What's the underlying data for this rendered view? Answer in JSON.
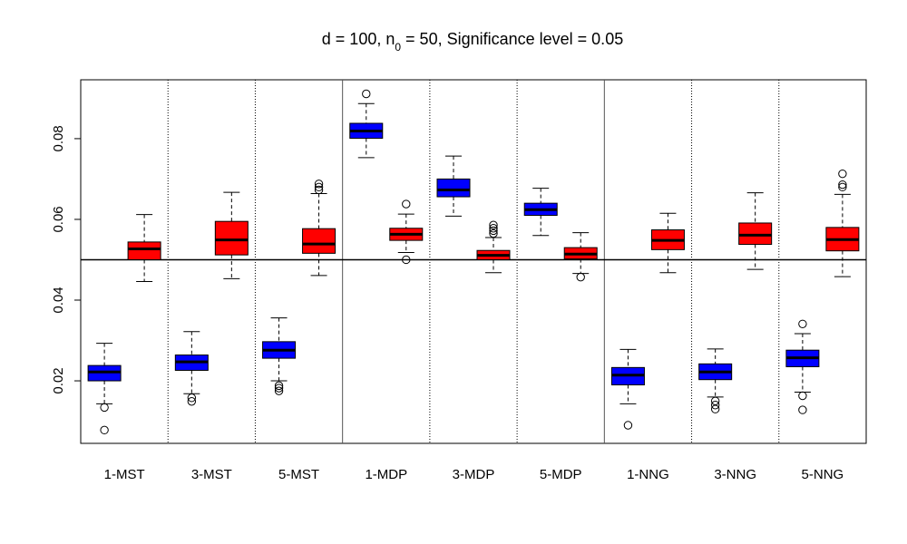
{
  "chart_data": {
    "type": "boxplot",
    "title": {
      "prefix": "d = 100, n",
      "subscript": "0",
      "suffix": " = 50, Significance level = 0.05"
    },
    "xlabel": "",
    "ylabel": "",
    "ylim": [
      0.005,
      0.095
    ],
    "y_ticks": [
      0.02,
      0.04,
      0.06,
      0.08
    ],
    "y_tick_labels": [
      "0.02",
      "0.04",
      "0.06",
      "0.08"
    ],
    "reference_line": 0.05,
    "colors": {
      "series_a": "#0000ff",
      "series_b": "#ff0000"
    },
    "groups": [
      {
        "label": "1-MST",
        "boxes": [
          {
            "series": "a",
            "whisker_low": 0.0143,
            "q1": 0.02,
            "median": 0.0222,
            "q3": 0.0238,
            "whisker_high": 0.0293,
            "outliers": [
              0.0134,
              0.0078
            ]
          },
          {
            "series": "b",
            "whisker_low": 0.0446,
            "q1": 0.05,
            "median": 0.0527,
            "q3": 0.0544,
            "whisker_high": 0.0612,
            "outliers": []
          }
        ]
      },
      {
        "label": "3-MST",
        "boxes": [
          {
            "series": "a",
            "whisker_low": 0.0168,
            "q1": 0.0226,
            "median": 0.0247,
            "q3": 0.0264,
            "whisker_high": 0.0322,
            "outliers": [
              0.0158,
              0.0149
            ]
          },
          {
            "series": "b",
            "whisker_low": 0.0453,
            "q1": 0.0512,
            "median": 0.0549,
            "q3": 0.0595,
            "whisker_high": 0.0667,
            "outliers": []
          }
        ]
      },
      {
        "label": "5-MST",
        "boxes": [
          {
            "series": "a",
            "whisker_low": 0.02,
            "q1": 0.0256,
            "median": 0.0276,
            "q3": 0.0297,
            "whisker_high": 0.0356,
            "outliers": [
              0.0188,
              0.0182,
              0.0175
            ]
          },
          {
            "series": "b",
            "whisker_low": 0.0461,
            "q1": 0.0516,
            "median": 0.0539,
            "q3": 0.0577,
            "whisker_high": 0.0664,
            "outliers": [
              0.0673,
              0.068,
              0.0688
            ]
          }
        ]
      },
      {
        "label": "1-MDP",
        "boxes": [
          {
            "series": "a",
            "whisker_low": 0.0753,
            "q1": 0.0801,
            "median": 0.0819,
            "q3": 0.0838,
            "whisker_high": 0.0887,
            "outliers": [
              0.0911
            ]
          },
          {
            "series": "b",
            "whisker_low": 0.0518,
            "q1": 0.0548,
            "median": 0.0563,
            "q3": 0.0578,
            "whisker_high": 0.0613,
            "outliers": [
              0.0638,
              0.05
            ]
          }
        ]
      },
      {
        "label": "3-MDP",
        "boxes": [
          {
            "series": "a",
            "whisker_low": 0.0608,
            "q1": 0.0656,
            "median": 0.0673,
            "q3": 0.07,
            "whisker_high": 0.0757,
            "outliers": []
          },
          {
            "series": "b",
            "whisker_low": 0.0468,
            "q1": 0.05,
            "median": 0.0511,
            "q3": 0.0523,
            "whisker_high": 0.0555,
            "outliers": [
              0.0565,
              0.0572,
              0.0578,
              0.0586
            ]
          }
        ]
      },
      {
        "label": "5-MDP",
        "boxes": [
          {
            "series": "a",
            "whisker_low": 0.056,
            "q1": 0.061,
            "median": 0.0624,
            "q3": 0.064,
            "whisker_high": 0.0677,
            "outliers": []
          },
          {
            "series": "b",
            "whisker_low": 0.0466,
            "q1": 0.0502,
            "median": 0.0514,
            "q3": 0.053,
            "whisker_high": 0.0567,
            "outliers": [
              0.0457
            ]
          }
        ]
      },
      {
        "label": "1-NNG",
        "boxes": [
          {
            "series": "a",
            "whisker_low": 0.0143,
            "q1": 0.019,
            "median": 0.0214,
            "q3": 0.0233,
            "whisker_high": 0.0278,
            "outliers": [
              0.009
            ]
          },
          {
            "series": "b",
            "whisker_low": 0.0468,
            "q1": 0.0525,
            "median": 0.0548,
            "q3": 0.0574,
            "whisker_high": 0.0615,
            "outliers": []
          }
        ]
      },
      {
        "label": "3-NNG",
        "boxes": [
          {
            "series": "a",
            "whisker_low": 0.016,
            "q1": 0.0203,
            "median": 0.0222,
            "q3": 0.0242,
            "whisker_high": 0.0279,
            "outliers": [
              0.015,
              0.014,
              0.013
            ]
          },
          {
            "series": "b",
            "whisker_low": 0.0476,
            "q1": 0.0538,
            "median": 0.0561,
            "q3": 0.0591,
            "whisker_high": 0.0666,
            "outliers": []
          }
        ]
      },
      {
        "label": "5-NNG",
        "boxes": [
          {
            "series": "a",
            "whisker_low": 0.0172,
            "q1": 0.0235,
            "median": 0.0257,
            "q3": 0.0276,
            "whisker_high": 0.0317,
            "outliers": [
              0.0341,
              0.0163,
              0.0128
            ]
          },
          {
            "series": "b",
            "whisker_low": 0.0458,
            "q1": 0.0522,
            "median": 0.055,
            "q3": 0.058,
            "whisker_high": 0.0662,
            "outliers": [
              0.068,
              0.0686,
              0.0713
            ]
          }
        ]
      }
    ]
  }
}
